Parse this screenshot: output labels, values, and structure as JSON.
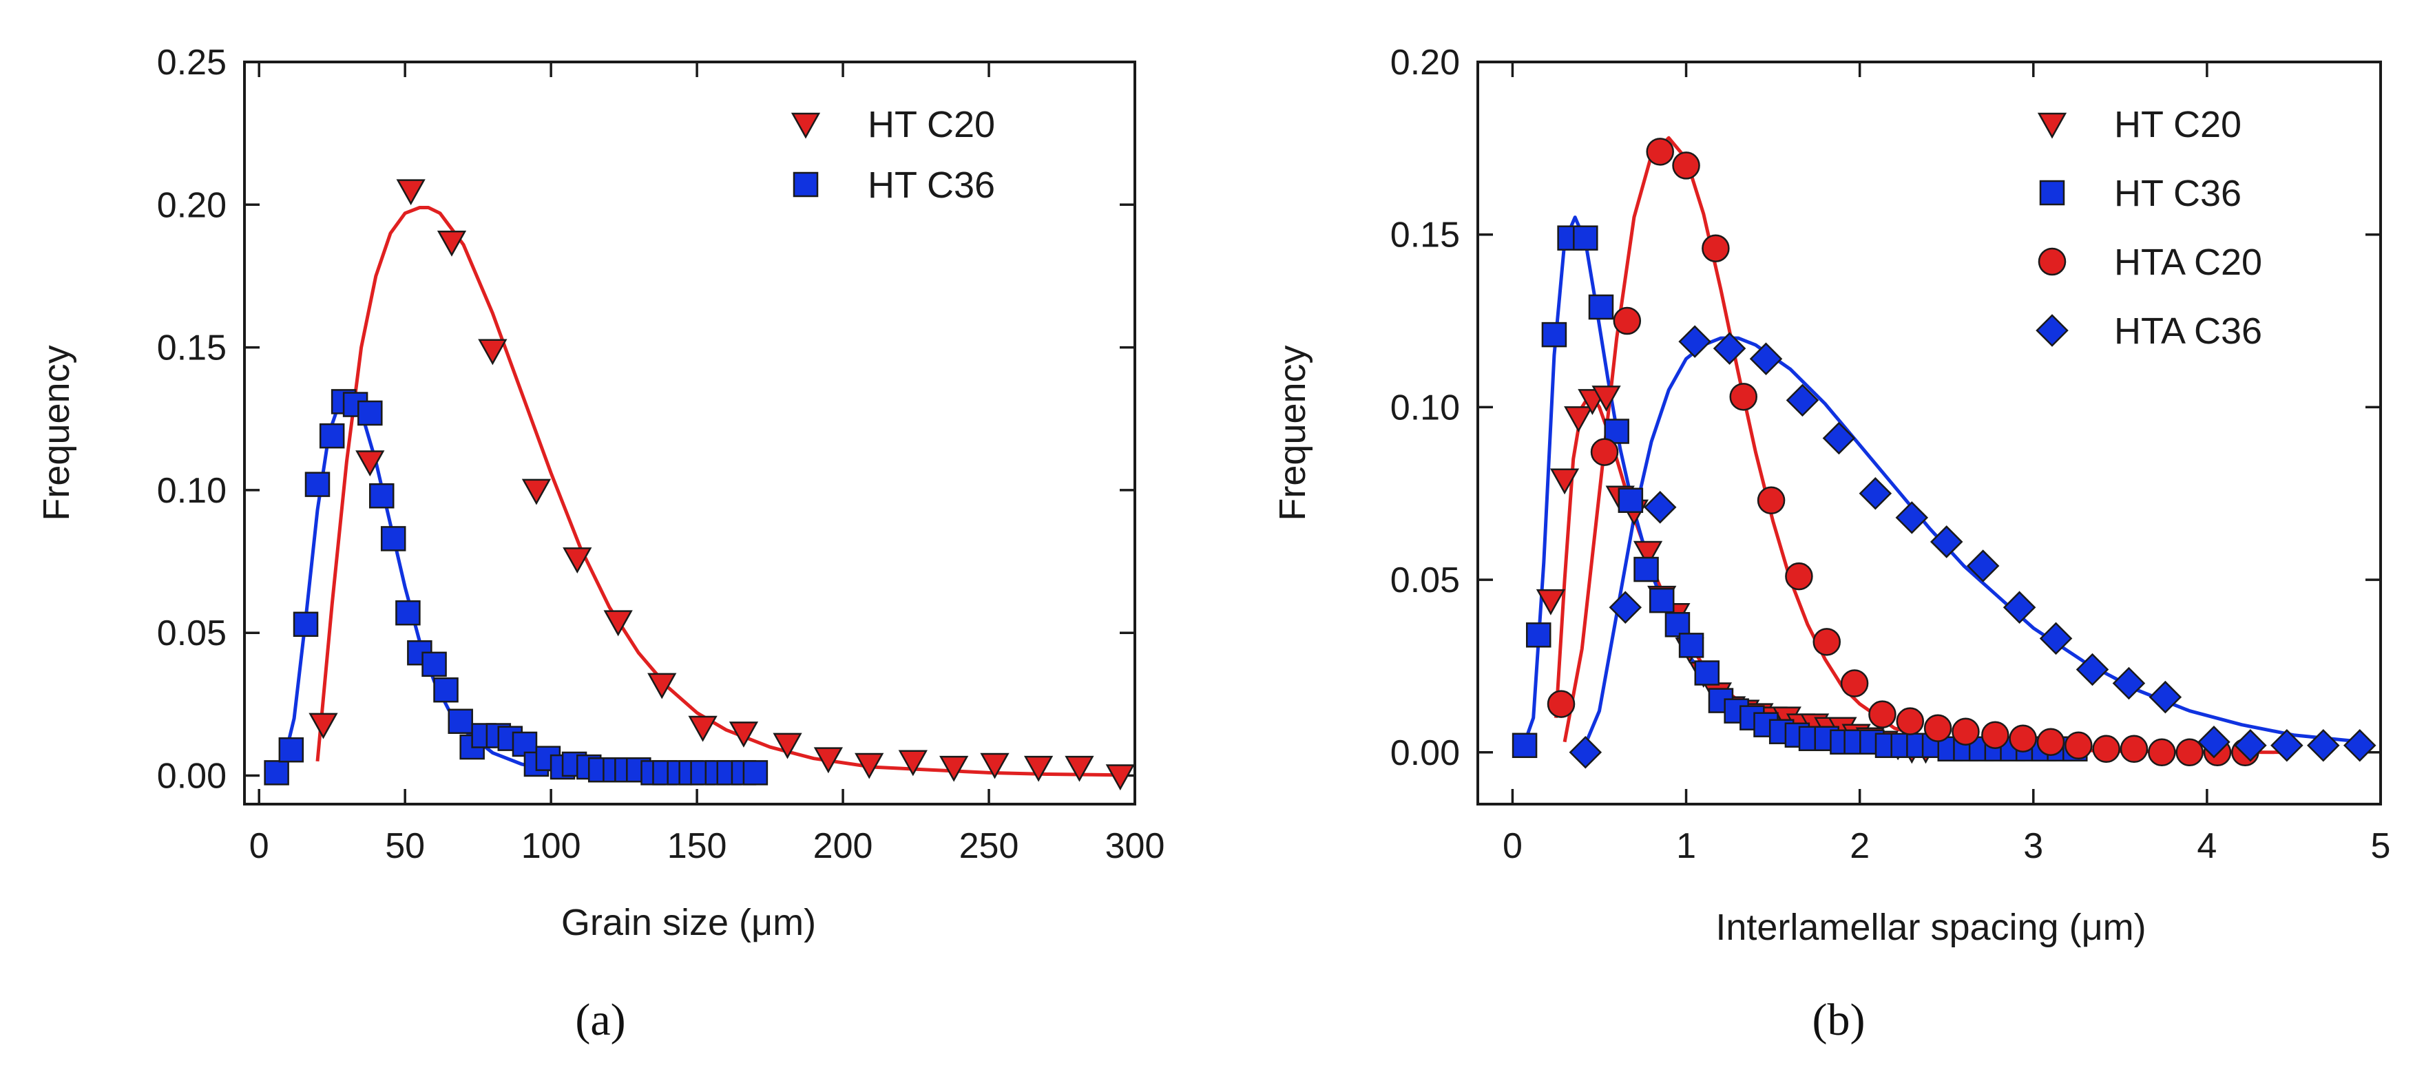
{
  "chart_data": [
    {
      "type": "scatter",
      "panel_label": "(a)",
      "xlabel": "Grain size (μm)",
      "ylabel": "Frequency",
      "xlim": [
        -5,
        300
      ],
      "ylim": [
        -0.01,
        0.25
      ],
      "xticks": [
        0,
        50,
        100,
        150,
        200,
        250,
        300
      ],
      "yticks": [
        0.0,
        0.05,
        0.1,
        0.15,
        0.2,
        0.25
      ],
      "ytick_labels": [
        "0.00",
        "0.05",
        "0.10",
        "0.15",
        "0.20",
        "0.25"
      ],
      "legend_position": "top-right",
      "series": [
        {
          "name": "HT C20",
          "marker": "triangle-down",
          "color": "#e02020",
          "x": [
            22,
            38,
            52,
            66,
            80,
            95,
            109,
            123,
            138,
            152,
            166,
            181,
            195,
            209,
            224,
            238,
            252,
            267,
            281,
            295
          ],
          "y": [
            0.018,
            0.11,
            0.205,
            0.187,
            0.149,
            0.1,
            0.076,
            0.054,
            0.032,
            0.017,
            0.015,
            0.011,
            0.006,
            0.004,
            0.005,
            0.003,
            0.004,
            0.003,
            0.003,
            0.0
          ],
          "fit": {
            "x": [
              20,
              25,
              30,
              35,
              40,
              45,
              50,
              55,
              58,
              62,
              70,
              80,
              90,
              100,
              110,
              120,
              130,
              140,
              150,
              160,
              175,
              190,
              210,
              230,
              250,
              270,
              295
            ],
            "y": [
              0.005,
              0.06,
              0.11,
              0.15,
              0.175,
              0.19,
              0.197,
              0.199,
              0.199,
              0.197,
              0.186,
              0.162,
              0.134,
              0.106,
              0.08,
              0.059,
              0.043,
              0.031,
              0.022,
              0.016,
              0.01,
              0.006,
              0.003,
              0.002,
              0.001,
              0.0005,
              0.0002
            ]
          }
        },
        {
          "name": "HT C36",
          "marker": "square",
          "color": "#1033e0",
          "x": [
            6,
            11,
            16,
            20,
            25,
            29,
            33,
            38,
            42,
            46,
            51,
            55,
            60,
            64,
            69,
            73,
            77,
            82,
            86,
            91,
            95,
            99,
            104,
            108,
            113,
            117,
            122,
            126,
            130,
            135,
            139,
            144,
            148,
            152,
            157,
            161,
            166,
            170
          ],
          "y": [
            0.001,
            0.009,
            0.053,
            0.102,
            0.119,
            0.131,
            0.13,
            0.127,
            0.098,
            0.083,
            0.057,
            0.043,
            0.039,
            0.03,
            0.019,
            0.01,
            0.014,
            0.014,
            0.013,
            0.011,
            0.004,
            0.006,
            0.003,
            0.004,
            0.003,
            0.002,
            0.002,
            0.002,
            0.002,
            0.001,
            0.001,
            0.001,
            0.001,
            0.001,
            0.001,
            0.001,
            0.001,
            0.001
          ],
          "fit": {
            "x": [
              3,
              8,
              12,
              16,
              20,
              24,
              28,
              32,
              36,
              40,
              45,
              50,
              55,
              60,
              65,
              70,
              80,
              90,
              100,
              120,
              140,
              170
            ],
            "y": [
              0.0,
              0.003,
              0.02,
              0.055,
              0.093,
              0.12,
              0.132,
              0.132,
              0.124,
              0.11,
              0.088,
              0.066,
              0.047,
              0.033,
              0.023,
              0.016,
              0.008,
              0.004,
              0.002,
              0.0006,
              0.0002,
              0.0001
            ]
          }
        }
      ]
    },
    {
      "type": "scatter",
      "panel_label": "(b)",
      "xlabel": "Interlamellar spacing (μm)",
      "ylabel": "Frequency",
      "xlim": [
        -0.2,
        5.0
      ],
      "ylim": [
        -0.015,
        0.2
      ],
      "xticks": [
        0,
        1,
        2,
        3,
        4,
        5
      ],
      "yticks": [
        0.0,
        0.05,
        0.1,
        0.15,
        0.2
      ],
      "ytick_labels": [
        "0.00",
        "0.05",
        "0.10",
        "0.15",
        "0.20"
      ],
      "legend_position": "top-right",
      "series": [
        {
          "name": "HT C20",
          "marker": "triangle-down",
          "color": "#e02020",
          "x": [
            0.22,
            0.3,
            0.38,
            0.46,
            0.54,
            0.62,
            0.7,
            0.78,
            0.86,
            0.94,
            1.02,
            1.1,
            1.18,
            1.26,
            1.34,
            1.42,
            1.5,
            1.58,
            1.66,
            1.74,
            1.82,
            1.9,
            1.98,
            2.06,
            2.14,
            2.22,
            2.3,
            2.38
          ],
          "y": [
            0.044,
            0.079,
            0.097,
            0.102,
            0.103,
            0.074,
            0.07,
            0.058,
            0.045,
            0.04,
            0.03,
            0.023,
            0.017,
            0.013,
            0.012,
            0.011,
            0.01,
            0.01,
            0.008,
            0.008,
            0.007,
            0.007,
            0.005,
            0.004,
            0.003,
            0.002,
            0.001,
            0.001
          ],
          "fit": {
            "x": [
              0.25,
              0.3,
              0.35,
              0.4,
              0.45,
              0.5,
              0.55,
              0.6,
              0.7,
              0.8,
              0.9,
              1.0,
              1.1,
              1.2,
              1.4,
              1.6,
              1.8,
              2.0,
              2.2,
              2.4
            ],
            "y": [
              0.01,
              0.05,
              0.085,
              0.1,
              0.104,
              0.1,
              0.093,
              0.085,
              0.068,
              0.054,
              0.042,
              0.033,
              0.025,
              0.019,
              0.011,
              0.006,
              0.003,
              0.002,
              0.001,
              0.0005
            ]
          }
        },
        {
          "name": "HT C36",
          "marker": "square",
          "color": "#1033e0",
          "x": [
            0.07,
            0.15,
            0.24,
            0.33,
            0.42,
            0.51,
            0.6,
            0.68,
            0.77,
            0.86,
            0.95,
            1.03,
            1.12,
            1.2,
            1.29,
            1.38,
            1.46,
            1.55,
            1.64,
            1.72,
            1.81,
            1.9,
            1.98,
            2.07,
            2.16,
            2.25,
            2.34,
            2.43,
            2.52,
            2.61,
            2.7,
            2.79,
            2.88,
            2.97,
            3.06,
            3.15,
            3.24
          ],
          "y": [
            0.002,
            0.034,
            0.121,
            0.149,
            0.149,
            0.129,
            0.093,
            0.073,
            0.053,
            0.044,
            0.037,
            0.031,
            0.023,
            0.015,
            0.012,
            0.01,
            0.008,
            0.006,
            0.005,
            0.004,
            0.004,
            0.003,
            0.003,
            0.003,
            0.002,
            0.002,
            0.002,
            0.002,
            0.001,
            0.001,
            0.001,
            0.001,
            0.001,
            0.001,
            0.001,
            0.001,
            0.001
          ],
          "fit": {
            "x": [
              0.05,
              0.12,
              0.18,
              0.24,
              0.3,
              0.36,
              0.42,
              0.48,
              0.55,
              0.62,
              0.7,
              0.8,
              0.9,
              1.0,
              1.2,
              1.4,
              1.6,
              1.8,
              2.1,
              2.5,
              3.0
            ],
            "y": [
              0.0,
              0.01,
              0.055,
              0.115,
              0.148,
              0.155,
              0.148,
              0.13,
              0.108,
              0.088,
              0.07,
              0.052,
              0.039,
              0.029,
              0.016,
              0.009,
              0.005,
              0.003,
              0.001,
              0.0004,
              0.0001
            ]
          }
        },
        {
          "name": "HTA C20",
          "marker": "circle",
          "color": "#e02020",
          "x": [
            0.28,
            0.53,
            0.66,
            0.85,
            1.0,
            1.17,
            1.33,
            1.49,
            1.65,
            1.81,
            1.97,
            2.13,
            2.29,
            2.45,
            2.61,
            2.78,
            2.94,
            3.1,
            3.26,
            3.42,
            3.58,
            3.74,
            3.9,
            4.06,
            4.22
          ],
          "y": [
            0.014,
            0.087,
            0.125,
            0.174,
            0.17,
            0.146,
            0.103,
            0.073,
            0.051,
            0.032,
            0.02,
            0.011,
            0.009,
            0.007,
            0.006,
            0.005,
            0.004,
            0.003,
            0.002,
            0.001,
            0.001,
            0.0,
            0.0,
            0.0,
            0.0
          ],
          "fit": {
            "x": [
              0.3,
              0.4,
              0.5,
              0.6,
              0.7,
              0.8,
              0.9,
              1.0,
              1.1,
              1.2,
              1.3,
              1.4,
              1.5,
              1.6,
              1.7,
              1.8,
              1.9,
              2.0,
              2.2,
              2.4,
              2.7,
              3.0,
              3.5,
              4.0,
              4.5
            ],
            "y": [
              0.003,
              0.03,
              0.075,
              0.12,
              0.155,
              0.173,
              0.178,
              0.172,
              0.156,
              0.134,
              0.11,
              0.087,
              0.067,
              0.05,
              0.037,
              0.027,
              0.019,
              0.014,
              0.007,
              0.004,
              0.002,
              0.001,
              0.0003,
              0.0001,
              0.0
            ]
          }
        },
        {
          "name": "HTA C36",
          "marker": "diamond",
          "color": "#1033e0",
          "x": [
            0.42,
            0.65,
            0.85,
            1.05,
            1.25,
            1.46,
            1.67,
            1.88,
            2.09,
            2.3,
            2.5,
            2.71,
            2.92,
            3.13,
            3.34,
            3.55,
            3.76,
            4.04,
            4.25,
            4.46,
            4.67,
            4.88
          ],
          "y": [
            0.0,
            0.042,
            0.071,
            0.119,
            0.117,
            0.114,
            0.102,
            0.091,
            0.075,
            0.068,
            0.061,
            0.054,
            0.042,
            0.033,
            0.024,
            0.02,
            0.016,
            0.003,
            0.002,
            0.002,
            0.002,
            0.002
          ],
          "fit": {
            "x": [
              0.4,
              0.5,
              0.6,
              0.7,
              0.8,
              0.9,
              1.0,
              1.1,
              1.2,
              1.3,
              1.4,
              1.6,
              1.8,
              2.0,
              2.2,
              2.4,
              2.6,
              2.8,
              3.0,
              3.3,
              3.6,
              3.9,
              4.2,
              4.5,
              4.9
            ],
            "y": [
              0.0,
              0.012,
              0.04,
              0.068,
              0.09,
              0.105,
              0.114,
              0.118,
              0.12,
              0.12,
              0.118,
              0.111,
              0.101,
              0.089,
              0.077,
              0.065,
              0.054,
              0.045,
              0.036,
              0.026,
              0.018,
              0.012,
              0.008,
              0.005,
              0.003
            ]
          }
        }
      ]
    }
  ]
}
